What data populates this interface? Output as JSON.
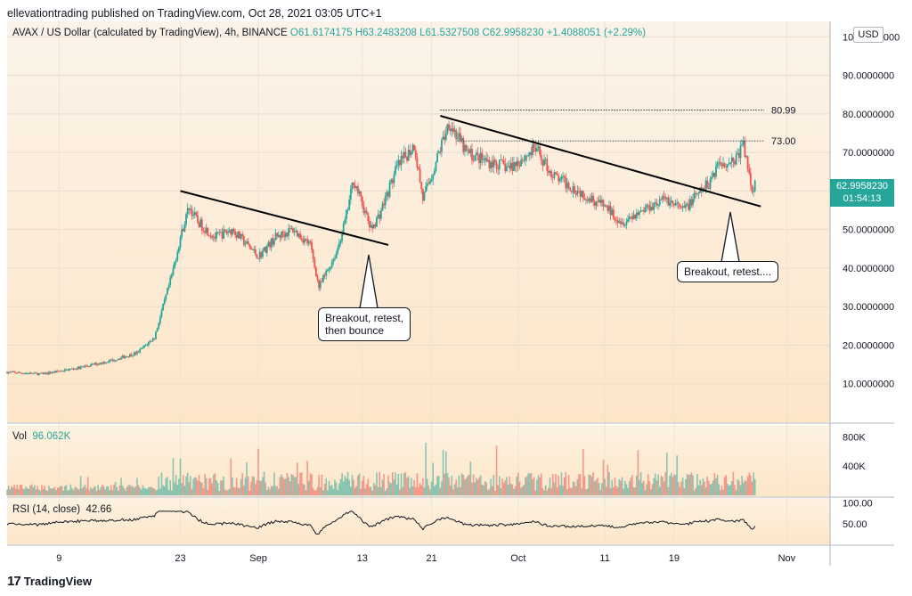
{
  "header": {
    "publisher": "ellevationtrading published on TradingView.com, Oct 28, 2021 03:05 UTC+1",
    "symbol": "AVAX / US Dollar (calculated by TradingView), 4h, BINANCE",
    "ohlc": "O61.6174175  H63.2483208  L61.5327508  C62.9958230  +1.4088051 (+2.29%)"
  },
  "currency_button": "USD",
  "last_price": {
    "price": "62.9958230",
    "countdown": "01:54:13"
  },
  "volume_label": {
    "name": "Vol",
    "value": "96.062K"
  },
  "rsi_label": {
    "name": "RSI (14, close)",
    "value": "42.66"
  },
  "footer": {
    "brand": "TradingView",
    "logo": "17"
  },
  "callouts": [
    {
      "text": "Breakout, retest,\nthen bounce"
    },
    {
      "text": "Breakout, retest...."
    }
  ],
  "colors": {
    "up": "#26a69a",
    "down": "#ef5350",
    "background_top": "#fbf3ea",
    "background_bottom": "#fde8cc",
    "trendline": "#000000"
  },
  "chart_data": {
    "type": "candlestick",
    "title": "AVAX / US Dollar, 4h, BINANCE",
    "price_axis": {
      "ylim": [
        0,
        104
      ],
      "ticks": [
        10,
        20,
        30,
        40,
        50,
        60,
        70,
        80,
        90,
        100
      ],
      "tick_labels": [
        "10.0000000",
        "20.0000000",
        "30.0000000",
        "40.0000000",
        "50.0000000",
        "60.0000000",
        "70.0000000",
        "80.0000000",
        "90.0000000",
        "100.0000000"
      ]
    },
    "time_axis": {
      "labels": [
        "9",
        "23",
        "Sep",
        "13",
        "21",
        "Oct",
        "11",
        "19",
        "Nov"
      ],
      "label_dates": [
        "2021-08-09",
        "2021-08-23",
        "2021-09-01",
        "2021-09-13",
        "2021-09-21",
        "2021-10-01",
        "2021-10-11",
        "2021-10-19",
        "2021-11-01"
      ],
      "range": [
        "2021-08-03",
        "2021-11-06"
      ]
    },
    "price_path": [
      [
        "2021-08-03",
        13
      ],
      [
        "2021-08-07",
        12.5
      ],
      [
        "2021-08-11",
        14
      ],
      [
        "2021-08-15",
        16
      ],
      [
        "2021-08-18",
        18
      ],
      [
        "2021-08-20",
        22
      ],
      [
        "2021-08-22",
        38
      ],
      [
        "2021-08-23",
        48
      ],
      [
        "2021-08-24",
        56
      ],
      [
        "2021-08-25",
        52
      ],
      [
        "2021-08-27",
        48
      ],
      [
        "2021-08-29",
        50
      ],
      [
        "2021-09-01",
        43
      ],
      [
        "2021-09-03",
        48
      ],
      [
        "2021-09-05",
        50
      ],
      [
        "2021-09-07",
        46
      ],
      [
        "2021-09-08",
        35
      ],
      [
        "2021-09-10",
        44
      ],
      [
        "2021-09-11",
        52
      ],
      [
        "2021-09-12",
        63
      ],
      [
        "2021-09-14",
        50
      ],
      [
        "2021-09-15",
        54
      ],
      [
        "2021-09-17",
        66
      ],
      [
        "2021-09-19",
        72
      ],
      [
        "2021-09-20",
        58
      ],
      [
        "2021-09-21",
        64
      ],
      [
        "2021-09-23",
        78
      ],
      [
        "2021-09-25",
        70
      ],
      [
        "2021-09-27",
        68
      ],
      [
        "2021-09-30",
        66
      ],
      [
        "2021-10-03",
        71
      ],
      [
        "2021-10-05",
        64
      ],
      [
        "2021-10-08",
        60
      ],
      [
        "2021-10-11",
        56
      ],
      [
        "2021-10-13",
        52
      ],
      [
        "2021-10-16",
        56
      ],
      [
        "2021-10-18",
        58
      ],
      [
        "2021-10-20",
        55
      ],
      [
        "2021-10-23",
        62
      ],
      [
        "2021-10-24",
        67
      ],
      [
        "2021-10-26",
        68
      ],
      [
        "2021-10-27",
        72
      ],
      [
        "2021-10-28",
        60
      ],
      [
        "2021-10-28T08",
        62.9958
      ]
    ],
    "levels": [
      {
        "value": 80.99,
        "label": "80.99",
        "from": "2021-09-22"
      },
      {
        "value": 73.0,
        "label": "73.00",
        "from": "2021-09-24"
      }
    ],
    "trendlines": [
      {
        "from": [
          "2021-08-23",
          60
        ],
        "to": [
          "2021-09-16",
          46
        ]
      },
      {
        "from": [
          "2021-09-22",
          79.5
        ],
        "to": [
          "2021-10-29",
          56
        ]
      }
    ],
    "volume": {
      "ticks": [
        400000,
        800000
      ],
      "tick_labels": [
        "400K",
        "800K"
      ],
      "ylim": [
        0,
        950000
      ],
      "last": 96062
    },
    "rsi": {
      "ticks": [
        50,
        100
      ],
      "tick_labels": [
        "50.00",
        "100.00"
      ],
      "ylim": [
        0,
        110
      ],
      "last": 42.66
    }
  }
}
